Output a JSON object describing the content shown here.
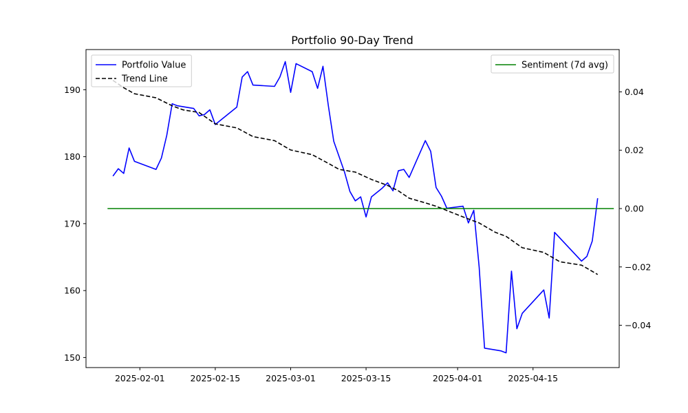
{
  "chart_data": {
    "type": "line",
    "title": "Portfolio 90-Day Trend",
    "xlabel": "",
    "ylabel": "",
    "x_ticks": [
      "2025-02-01",
      "2025-02-15",
      "2025-03-01",
      "2025-03-15",
      "2025-04-01",
      "2025-04-15"
    ],
    "y_ticks_left": [
      "150",
      "160",
      "170",
      "180",
      "190"
    ],
    "y_ticks_right": [
      "−0.04",
      "−0.02",
      "0.00",
      "0.02",
      "0.04"
    ],
    "xlim": [
      "2025-01-22",
      "2025-05-01"
    ],
    "ylim_left": [
      148.5,
      196.0
    ],
    "ylim_right": [
      -0.0545,
      0.0545
    ],
    "grid": false,
    "legend_left": {
      "placement": "top-left",
      "entries": [
        "Portfolio Value",
        "Trend Line"
      ]
    },
    "legend_right": {
      "placement": "top-right",
      "entries": [
        "Sentiment (7d avg)"
      ]
    },
    "series": [
      {
        "name": "Portfolio Value",
        "axis": "left",
        "color": "#0000ff",
        "style": "solid",
        "points": [
          [
            "2025-01-27",
            177.1
          ],
          [
            "2025-01-28",
            178.2
          ],
          [
            "2025-01-29",
            177.5
          ],
          [
            "2025-01-30",
            181.3
          ],
          [
            "2025-01-31",
            179.3
          ],
          [
            "2025-02-04",
            178.1
          ],
          [
            "2025-02-05",
            179.8
          ],
          [
            "2025-02-06",
            183.2
          ],
          [
            "2025-02-07",
            187.9
          ],
          [
            "2025-02-08",
            187.6
          ],
          [
            "2025-02-11",
            187.2
          ],
          [
            "2025-02-12",
            186.1
          ],
          [
            "2025-02-13",
            186.3
          ],
          [
            "2025-02-14",
            187.0
          ],
          [
            "2025-02-15",
            184.8
          ],
          [
            "2025-02-19",
            187.4
          ],
          [
            "2025-02-20",
            191.9
          ],
          [
            "2025-02-21",
            192.7
          ],
          [
            "2025-02-22",
            190.7
          ],
          [
            "2025-02-26",
            190.5
          ],
          [
            "2025-02-27",
            191.9
          ],
          [
            "2025-02-28",
            194.2
          ],
          [
            "2025-03-01",
            189.6
          ],
          [
            "2025-03-02",
            193.9
          ],
          [
            "2025-03-05",
            192.7
          ],
          [
            "2025-03-06",
            190.2
          ],
          [
            "2025-03-07",
            193.5
          ],
          [
            "2025-03-08",
            187.6
          ],
          [
            "2025-03-09",
            182.3
          ],
          [
            "2025-03-11",
            177.7
          ],
          [
            "2025-03-12",
            174.8
          ],
          [
            "2025-03-13",
            173.4
          ],
          [
            "2025-03-14",
            174.0
          ],
          [
            "2025-03-15",
            171.0
          ],
          [
            "2025-03-16",
            174.0
          ],
          [
            "2025-03-18",
            175.3
          ],
          [
            "2025-03-19",
            176.1
          ],
          [
            "2025-03-20",
            174.9
          ],
          [
            "2025-03-21",
            177.9
          ],
          [
            "2025-03-22",
            178.1
          ],
          [
            "2025-03-23",
            176.9
          ],
          [
            "2025-03-26",
            182.4
          ],
          [
            "2025-03-27",
            180.8
          ],
          [
            "2025-03-28",
            175.4
          ],
          [
            "2025-03-29",
            174.1
          ],
          [
            "2025-03-30",
            172.3
          ],
          [
            "2025-04-02",
            172.6
          ],
          [
            "2025-04-03",
            170.1
          ],
          [
            "2025-04-04",
            172.0
          ],
          [
            "2025-04-05",
            163.5
          ],
          [
            "2025-04-06",
            151.4
          ],
          [
            "2025-04-09",
            151.0
          ],
          [
            "2025-04-10",
            150.7
          ],
          [
            "2025-04-11",
            162.9
          ],
          [
            "2025-04-12",
            154.3
          ],
          [
            "2025-04-13",
            156.6
          ],
          [
            "2025-04-17",
            160.1
          ],
          [
            "2025-04-18",
            155.9
          ],
          [
            "2025-04-19",
            168.7
          ],
          [
            "2025-04-24",
            164.4
          ],
          [
            "2025-04-25",
            165.1
          ],
          [
            "2025-04-26",
            167.4
          ],
          [
            "2025-04-27",
            173.8
          ]
        ]
      },
      {
        "name": "Trend Line",
        "axis": "left",
        "color": "#000000",
        "style": "dashed",
        "points": [
          [
            "2025-01-27",
            191.4
          ],
          [
            "2025-01-29",
            190.3
          ],
          [
            "2025-01-31",
            189.4
          ],
          [
            "2025-02-04",
            188.8
          ],
          [
            "2025-02-07",
            187.6
          ],
          [
            "2025-02-09",
            187.0
          ],
          [
            "2025-02-12",
            186.6
          ],
          [
            "2025-02-15",
            184.9
          ],
          [
            "2025-02-19",
            184.3
          ],
          [
            "2025-02-22",
            183.0
          ],
          [
            "2025-02-26",
            182.4
          ],
          [
            "2025-03-01",
            181.0
          ],
          [
            "2025-03-05",
            180.3
          ],
          [
            "2025-03-08",
            179.0
          ],
          [
            "2025-03-10",
            178.1
          ],
          [
            "2025-03-13",
            177.7
          ],
          [
            "2025-03-16",
            176.6
          ],
          [
            "2025-03-19",
            175.7
          ],
          [
            "2025-03-21",
            174.9
          ],
          [
            "2025-03-23",
            173.8
          ],
          [
            "2025-03-26",
            173.1
          ],
          [
            "2025-03-28",
            172.6
          ],
          [
            "2025-04-02",
            171.0
          ],
          [
            "2025-04-05",
            170.1
          ],
          [
            "2025-04-08",
            168.7
          ],
          [
            "2025-04-10",
            168.1
          ],
          [
            "2025-04-13",
            166.4
          ],
          [
            "2025-04-17",
            165.7
          ],
          [
            "2025-04-20",
            164.3
          ],
          [
            "2025-04-24",
            163.8
          ],
          [
            "2025-04-27",
            162.4
          ]
        ]
      },
      {
        "name": "Sentiment (7d avg)",
        "axis": "right",
        "color": "#008000",
        "style": "solid",
        "points": [
          [
            "2025-01-26",
            0.0
          ],
          [
            "2025-04-30",
            0.0
          ]
        ]
      }
    ]
  }
}
